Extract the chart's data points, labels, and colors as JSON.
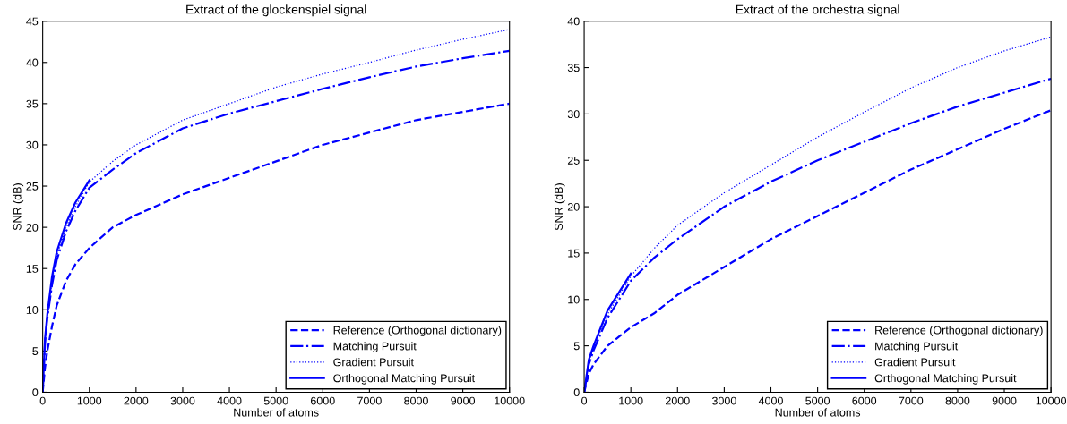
{
  "chart_data": [
    {
      "type": "line",
      "title": "Extract of the glockenspiel signal",
      "xlabel": "Number of atoms",
      "ylabel": "SNR (dB)",
      "xlim": [
        0,
        10000
      ],
      "ylim": [
        0,
        45
      ],
      "xticks": [
        0,
        1000,
        2000,
        3000,
        4000,
        5000,
        6000,
        7000,
        8000,
        9000,
        10000
      ],
      "yticks": [
        0,
        5,
        10,
        15,
        20,
        25,
        30,
        35,
        40,
        45
      ],
      "grid": false,
      "legend": "bottom right",
      "series": [
        {
          "name": "Reference (Orthogonal dictionary)",
          "color": "#0000ff",
          "line_style": "dashed",
          "x": [
            0,
            50,
            100,
            200,
            300,
            500,
            700,
            1000,
            1500,
            2000,
            3000,
            4000,
            5000,
            6000,
            7000,
            8000,
            9000,
            10000
          ],
          "values": [
            0,
            3,
            5,
            8,
            10.5,
            13.5,
            15.5,
            17.5,
            20,
            21.5,
            24,
            26,
            28,
            30,
            31.5,
            33,
            34,
            35
          ]
        },
        {
          "name": "Matching Pursuit",
          "color": "#0000ff",
          "line_style": "dashdot",
          "x": [
            0,
            50,
            100,
            200,
            300,
            500,
            700,
            1000,
            1500,
            2000,
            3000,
            4000,
            5000,
            6000,
            7000,
            8000,
            9000,
            10000
          ],
          "values": [
            0,
            6,
            9,
            13,
            16,
            19.5,
            22,
            24.8,
            27,
            29,
            32,
            33.8,
            35.3,
            36.8,
            38.2,
            39.5,
            40.5,
            41.4
          ]
        },
        {
          "name": "Gradient Pursuit",
          "color": "#0000ff",
          "line_style": "dotted",
          "x": [
            0,
            50,
            100,
            200,
            300,
            500,
            700,
            1000,
            1500,
            2000,
            3000,
            4000,
            5000,
            6000,
            7000,
            8000,
            9000,
            10000
          ],
          "values": [
            0,
            6.2,
            9.2,
            13.5,
            16.5,
            20,
            22.5,
            25.5,
            28,
            30,
            33,
            35,
            37,
            38.6,
            40,
            41.5,
            42.8,
            44
          ]
        },
        {
          "name": "Orthogonal Matching Pursuit",
          "color": "#0000ff",
          "line_style": "solid",
          "x": [
            0,
            50,
            100,
            200,
            300,
            500,
            700,
            1000
          ],
          "values": [
            0,
            6.5,
            9.5,
            14,
            17,
            20.5,
            23,
            25.7
          ]
        }
      ]
    },
    {
      "type": "line",
      "title": "Extract of the orchestra signal",
      "xlabel": "Number of atoms",
      "ylabel": "SNR (dB)",
      "xlim": [
        0,
        10000
      ],
      "ylim": [
        0,
        40
      ],
      "xticks": [
        0,
        1000,
        2000,
        3000,
        4000,
        5000,
        6000,
        7000,
        8000,
        9000,
        10000
      ],
      "yticks": [
        0,
        5,
        10,
        15,
        20,
        25,
        30,
        35,
        40
      ],
      "grid": false,
      "legend": "bottom right",
      "series": [
        {
          "name": "Reference (Orthogonal dictionary)",
          "color": "#0000ff",
          "line_style": "dashed",
          "x": [
            0,
            100,
            200,
            500,
            1000,
            1500,
            2000,
            3000,
            4000,
            5000,
            6000,
            7000,
            8000,
            9000,
            10000
          ],
          "values": [
            0,
            2,
            3,
            5,
            7,
            8.5,
            10.5,
            13.5,
            16.5,
            19,
            21.5,
            24,
            26.2,
            28.4,
            30.4
          ]
        },
        {
          "name": "Matching Pursuit",
          "color": "#0000ff",
          "line_style": "dashdot",
          "x": [
            0,
            100,
            200,
            500,
            1000,
            1500,
            2000,
            3000,
            4000,
            5000,
            6000,
            7000,
            8000,
            9000,
            10000
          ],
          "values": [
            0,
            3,
            4.5,
            8,
            12,
            14.5,
            16.5,
            20,
            22.7,
            25,
            27,
            29,
            30.8,
            32.3,
            33.8
          ]
        },
        {
          "name": "Gradient Pursuit",
          "color": "#0000ff",
          "line_style": "dotted",
          "x": [
            0,
            100,
            200,
            500,
            1000,
            1500,
            2000,
            3000,
            4000,
            5000,
            6000,
            7000,
            8000,
            9000,
            10000
          ],
          "values": [
            0,
            3.2,
            4.8,
            8.4,
            12.5,
            15.5,
            18,
            21.5,
            24.5,
            27.5,
            30.2,
            32.8,
            35,
            36.8,
            38.3
          ]
        },
        {
          "name": "Orthogonal Matching Pursuit",
          "color": "#0000ff",
          "line_style": "solid",
          "x": [
            0,
            100,
            200,
            500,
            1000
          ],
          "values": [
            0,
            3.5,
            5,
            8.8,
            12.8
          ]
        }
      ]
    }
  ]
}
